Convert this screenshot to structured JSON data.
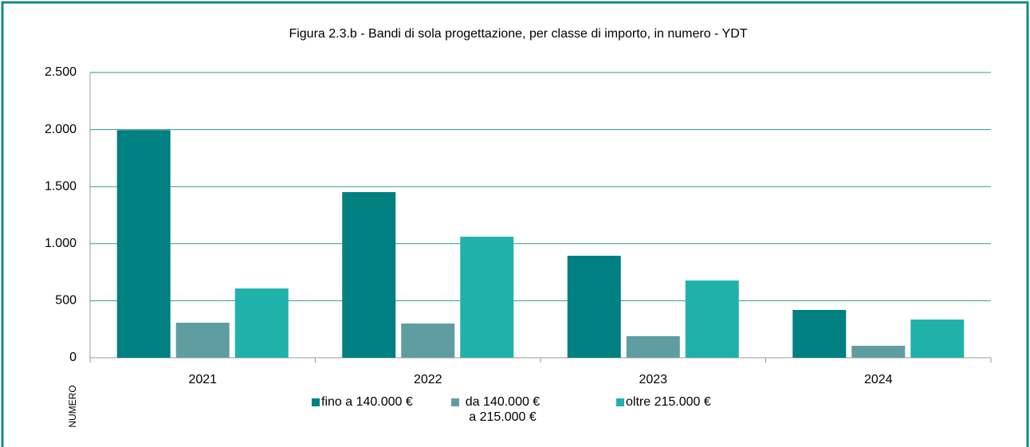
{
  "chart_data": {
    "type": "bar",
    "title": "Figura 2.3.b - Bandi di sola progettazione, per classe di importo, in numero - YDT",
    "y_label": "NUMERO",
    "categories": [
      "2021",
      "2022",
      "2023",
      "2024"
    ],
    "series": [
      {
        "name": "fino a 140.000 €",
        "color": "#008080",
        "values": [
          1995,
          1452,
          894,
          419
        ]
      },
      {
        "name": "da 140.000 € a 215.000 €",
        "color": "#5f9ea0",
        "values": [
          307,
          300,
          189,
          105
        ]
      },
      {
        "name": "oltre 215.000 €",
        "color": "#20b2aa",
        "values": [
          607,
          1061,
          677,
          335
        ]
      }
    ],
    "ylim": [
      0,
      2500
    ],
    "yticks": [
      0,
      500,
      {
        "value": 1000,
        "label": "1.000"
      },
      {
        "value": 1500,
        "label": "1.500"
      },
      {
        "value": 2000,
        "label": "2.000"
      },
      {
        "value": 2500,
        "label": "2.500"
      }
    ],
    "grid": true,
    "legend": "bottom"
  }
}
